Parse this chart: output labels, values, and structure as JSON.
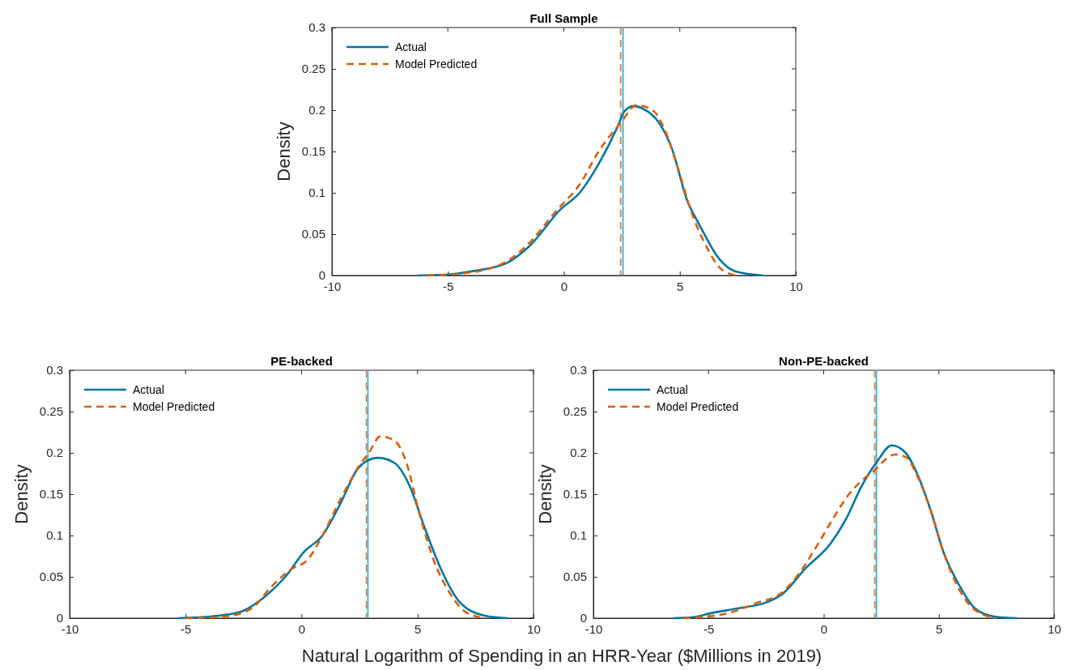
{
  "chart_data": [
    {
      "type": "line",
      "title": "Full Sample",
      "ylabel": "Density",
      "xlim": [
        -10,
        10
      ],
      "xticks": [
        -10,
        -5,
        0,
        5,
        10
      ],
      "ylim": [
        0,
        0.3
      ],
      "yticks": [
        0,
        0.05,
        0.1,
        0.15,
        0.2,
        0.25,
        0.3
      ],
      "legend": "top left",
      "grid": false,
      "ref_lines": [
        {
          "axis": "x",
          "value": 2.45,
          "color": "#e8874a",
          "line_style": "dashed"
        },
        {
          "axis": "x",
          "value": 2.55,
          "color": "#4db3d6",
          "line_style": "solid"
        }
      ],
      "series": [
        {
          "name": "Actual",
          "color": "#00769d",
          "line_style": "solid",
          "x": [
            -6.3,
            -5,
            -3.96,
            -2.46,
            -1.5,
            -0.14,
            0.68,
            1.5,
            2.32,
            2.6,
            3.0,
            3.4,
            4.1,
            4.64,
            5.33,
            5.87,
            6.7,
            7.4,
            8.6
          ],
          "values": [
            0,
            0.001,
            0.005,
            0.015,
            0.035,
            0.08,
            0.1,
            0.135,
            0.18,
            0.198,
            0.205,
            0.202,
            0.185,
            0.155,
            0.09,
            0.06,
            0.02,
            0.005,
            0
          ]
        },
        {
          "name": "Model Predicted",
          "color": "#d95f0e",
          "line_style": "dashed",
          "x": [
            -5.9,
            -4.5,
            -2.6,
            -1.64,
            -0.27,
            0.68,
            1.5,
            2.46,
            3.14,
            3.83,
            4.37,
            4.92,
            5.46,
            6.15,
            6.7,
            7.4
          ],
          "values": [
            0,
            0.002,
            0.015,
            0.035,
            0.08,
            0.11,
            0.15,
            0.185,
            0.206,
            0.2,
            0.175,
            0.13,
            0.08,
            0.035,
            0.01,
            0
          ]
        }
      ]
    },
    {
      "type": "line",
      "title": "PE-backed",
      "ylabel": "Density",
      "xlabel": "Natural Logarithm of Spending in an HRR-Year ($Millions in 2019)",
      "xlim": [
        -10,
        10
      ],
      "xticks": [
        -10,
        -5,
        0,
        5,
        10
      ],
      "ylim": [
        0,
        0.3
      ],
      "yticks": [
        0,
        0.05,
        0.1,
        0.15,
        0.2,
        0.25,
        0.3
      ],
      "legend": "top left",
      "grid": false,
      "ref_lines": [
        {
          "axis": "x",
          "value": 2.8,
          "color": "#e8874a",
          "line_style": "dashed"
        },
        {
          "axis": "x",
          "value": 2.86,
          "color": "#4db3d6",
          "line_style": "solid"
        }
      ],
      "series": [
        {
          "name": "Actual",
          "color": "#00769d",
          "line_style": "solid",
          "x": [
            -5.3,
            -3.9,
            -2.7,
            -1.5,
            -0.7,
            0.1,
            0.9,
            1.7,
            2.4,
            2.8,
            3.3,
            4.0,
            4.66,
            5.3,
            6.0,
            6.8,
            7.9,
            8.9
          ],
          "values": [
            0,
            0.002,
            0.007,
            0.028,
            0.05,
            0.08,
            0.1,
            0.14,
            0.18,
            0.19,
            0.194,
            0.188,
            0.16,
            0.11,
            0.06,
            0.02,
            0.003,
            0
          ]
        },
        {
          "name": "Model Predicted",
          "color": "#d95f0e",
          "line_style": "dashed",
          "x": [
            -5,
            -3.7,
            -2.7,
            -2.0,
            -1.4,
            -0.4,
            0.24,
            0.9,
            1.7,
            2.5,
            2.9,
            3.4,
            4.0,
            4.5,
            5.05,
            5.7,
            6.4,
            7.05,
            7.9
          ],
          "values": [
            0,
            0.001,
            0.005,
            0.015,
            0.035,
            0.06,
            0.07,
            0.1,
            0.145,
            0.185,
            0.2,
            0.22,
            0.215,
            0.19,
            0.13,
            0.07,
            0.03,
            0.008,
            0
          ]
        }
      ]
    },
    {
      "type": "line",
      "title": "Non-PE-backed",
      "ylabel": "Density",
      "xlim": [
        -10,
        10
      ],
      "xticks": [
        -10,
        -5,
        0,
        5,
        10
      ],
      "ylim": [
        0,
        0.3
      ],
      "yticks": [
        0,
        0.05,
        0.1,
        0.15,
        0.2,
        0.25,
        0.3
      ],
      "legend": "top left",
      "grid": false,
      "ref_lines": [
        {
          "axis": "x",
          "value": 2.22,
          "color": "#e8874a",
          "line_style": "dashed"
        },
        {
          "axis": "x",
          "value": 2.29,
          "color": "#4db3d6",
          "line_style": "solid"
        }
      ],
      "series": [
        {
          "name": "Actual",
          "color": "#00769d",
          "line_style": "solid",
          "x": [
            -6.5,
            -5.7,
            -4.9,
            -3.7,
            -2.4,
            -1.76,
            -0.8,
            0.29,
            0.97,
            1.65,
            2.33,
            2.95,
            3.56,
            4.1,
            4.65,
            5.2,
            5.88,
            6.56,
            7.4,
            8.4
          ],
          "values": [
            0,
            0.001,
            0.006,
            0.012,
            0.02,
            0.03,
            0.06,
            0.09,
            0.12,
            0.16,
            0.19,
            0.209,
            0.2,
            0.172,
            0.13,
            0.08,
            0.04,
            0.012,
            0.002,
            0
          ]
        },
        {
          "name": "Model Predicted",
          "color": "#d95f0e",
          "line_style": "dashed",
          "x": [
            -6.1,
            -5,
            -3.9,
            -2.95,
            -1.86,
            -1.04,
            -0.35,
            0.29,
            1.1,
            1.8,
            2.26,
            2.6,
            3.1,
            3.56,
            4.1,
            4.65,
            5.2,
            5.88,
            6.56,
            7.5
          ],
          "values": [
            0,
            0.002,
            0.008,
            0.018,
            0.03,
            0.055,
            0.085,
            0.115,
            0.15,
            0.17,
            0.18,
            0.19,
            0.198,
            0.195,
            0.17,
            0.13,
            0.08,
            0.035,
            0.01,
            0
          ]
        }
      ]
    }
  ]
}
